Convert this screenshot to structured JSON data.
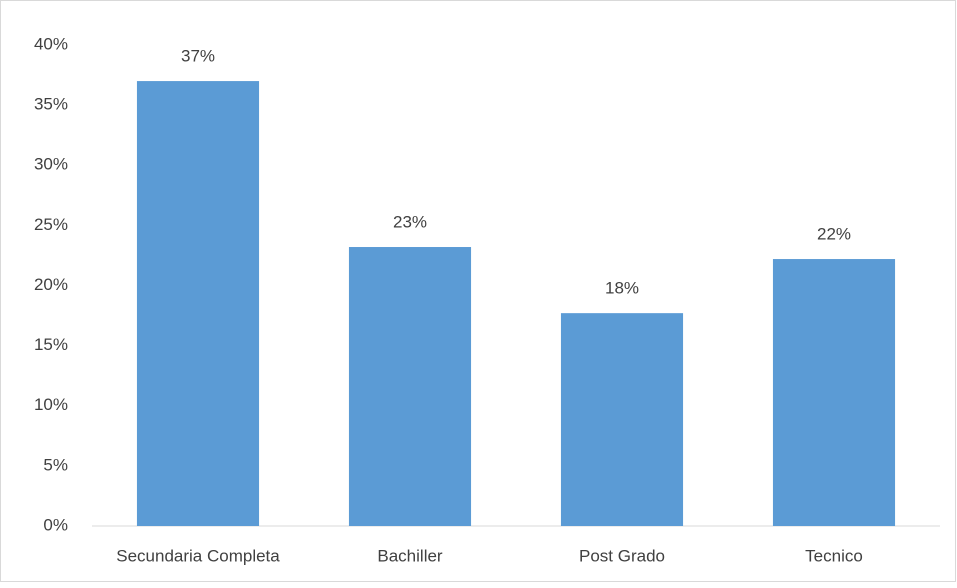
{
  "chart_data": {
    "type": "bar",
    "categories": [
      "Secundaria Completa",
      "Bachiller",
      "Post Grado",
      "Tecnico"
    ],
    "values": [
      37,
      23.2,
      17.7,
      22.2
    ],
    "value_labels": [
      "37%",
      "23%",
      "18%",
      "22%"
    ],
    "color": "#5b9bd5",
    "ylim": [
      0,
      40
    ],
    "yticks": [
      {
        "value": 0,
        "label": "0%"
      },
      {
        "value": 5,
        "label": "5%"
      },
      {
        "value": 10,
        "label": "10%"
      },
      {
        "value": 15,
        "label": "15%"
      },
      {
        "value": 20,
        "label": "20%"
      },
      {
        "value": 25,
        "label": "25%"
      },
      {
        "value": 30,
        "label": "30%"
      },
      {
        "value": 35,
        "label": "35%"
      },
      {
        "value": 40,
        "label": "40%"
      }
    ],
    "grid": false
  }
}
